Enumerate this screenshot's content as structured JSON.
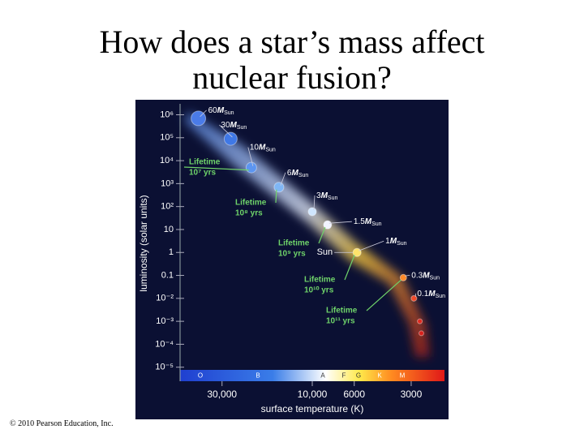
{
  "title": [
    "How does a star’s mass affect",
    "nuclear fusion?"
  ],
  "copyright": "© 2010 Pearson Education, Inc.",
  "chart_data": {
    "type": "scatter",
    "xlabel": "surface temperature (K)",
    "ylabel": "luminosity (solar units)",
    "log_x": true,
    "log_y": true,
    "x_reversed": true,
    "xlim": [
      50000,
      2000
    ],
    "ylim": [
      1e-06,
      3000000
    ],
    "xticks": [
      {
        "value": 30000,
        "label": "30,000"
      },
      {
        "value": 10000,
        "label": "10,000"
      },
      6000,
      3000
    ],
    "yticks": [
      {
        "value": 1000000,
        "label": "10⁶"
      },
      {
        "value": 100000,
        "label": "10⁵"
      },
      {
        "value": 10000,
        "label": "10⁴"
      },
      {
        "value": 1000,
        "label": "10³"
      },
      {
        "value": 100,
        "label": "10²"
      },
      10,
      1,
      0.1,
      {
        "value": 0.01,
        "label": "10⁻²"
      },
      {
        "value": 0.001,
        "label": "10⁻³"
      },
      {
        "value": 0.0001,
        "label": "10⁻⁴"
      },
      {
        "value": 1e-05,
        "label": "10⁻⁵"
      }
    ],
    "x": [
      40000,
      27000,
      21000,
      15000,
      10000,
      8300,
      5800,
      3300,
      2900,
      2700,
      2650
    ],
    "values": [
      700000,
      90000,
      5000,
      700,
      60,
      16,
      1,
      0.08,
      0.01,
      0.001,
      0.0003
    ],
    "colors": [
      "#4a7be8",
      "#3f78e6",
      "#5c95f0",
      "#7fb6f5",
      "#cfe6ff",
      "#f2f4ff",
      "#ffe36a",
      "#ff8a2a",
      "#f04a2a",
      "#e02a20",
      "#d8201c"
    ],
    "point_labels": [
      {
        "number": "60",
        "symbol": "M",
        "subscript": "Sun"
      },
      {
        "number": "30",
        "symbol": "M",
        "subscript": "Sun"
      },
      {
        "number": "10",
        "symbol": "M",
        "subscript": "Sun"
      },
      {
        "number": "6",
        "symbol": "M",
        "subscript": "Sun"
      },
      {
        "number": "3",
        "symbol": "M",
        "subscript": "Sun"
      },
      {
        "number": "1.5",
        "symbol": "M",
        "subscript": "Sun"
      },
      {
        "number": "1",
        "symbol": "M",
        "subscript": "Sun"
      },
      {
        "number": "0.3",
        "symbol": "M",
        "subscript": "Sun"
      },
      {
        "number": "0.1",
        "symbol": "M",
        "subscript": "Sun"
      },
      null,
      null
    ],
    "sun_label": "Sun",
    "lifetimes": [
      {
        "text": "Lifetime",
        "power": "10⁷ yrs"
      },
      {
        "text": "Lifetime",
        "power": "10⁸ yrs"
      },
      {
        "text": "Lifetime",
        "power": "10⁹ yrs"
      },
      {
        "text": "Lifetime",
        "power": "10¹⁰ yrs"
      },
      {
        "text": "Lifetime",
        "power": "10¹¹ yrs"
      }
    ],
    "spectral_classes": [
      "O",
      "B",
      "A",
      "F",
      "G",
      "K",
      "M"
    ]
  }
}
